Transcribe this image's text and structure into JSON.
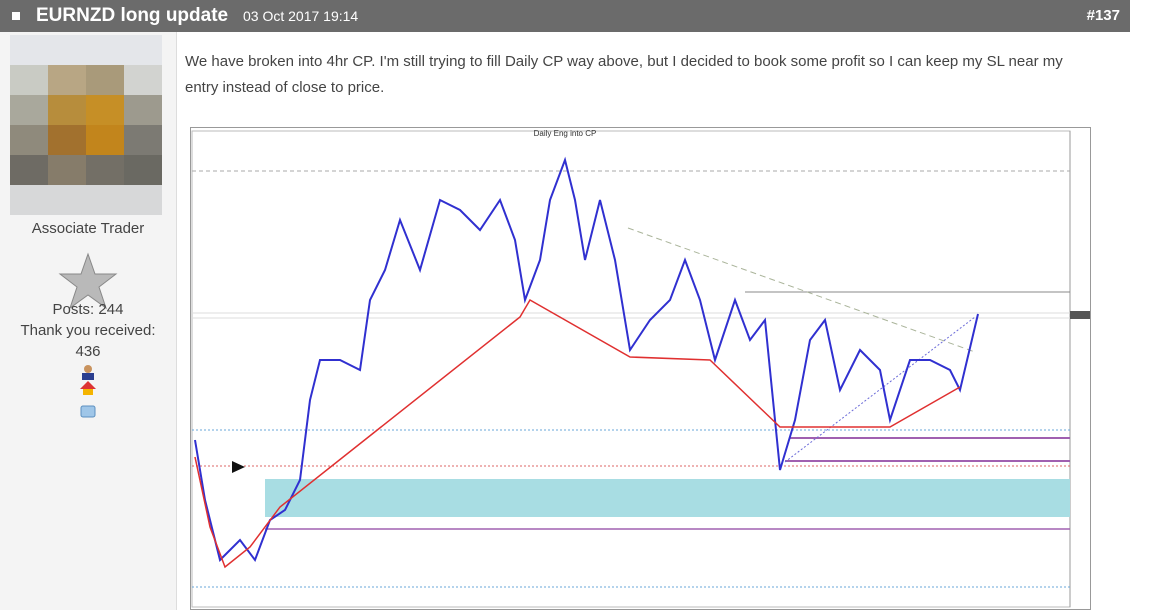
{
  "header": {
    "title": "EURNZD long update",
    "date": "03 Oct 2017 19:14",
    "post_number": "#137"
  },
  "user": {
    "rank": "Associate Trader",
    "posts": "Posts: 244",
    "thanks_label": "Thank you received:",
    "thanks_count": "436"
  },
  "post": {
    "text": "We have broken into 4hr CP. I'm still trying to fill Daily CP way above, but I decided to book some profit so I can keep my SL near my entry instead of close to price."
  },
  "image": {
    "caption": "Daily Eng into CP"
  }
}
